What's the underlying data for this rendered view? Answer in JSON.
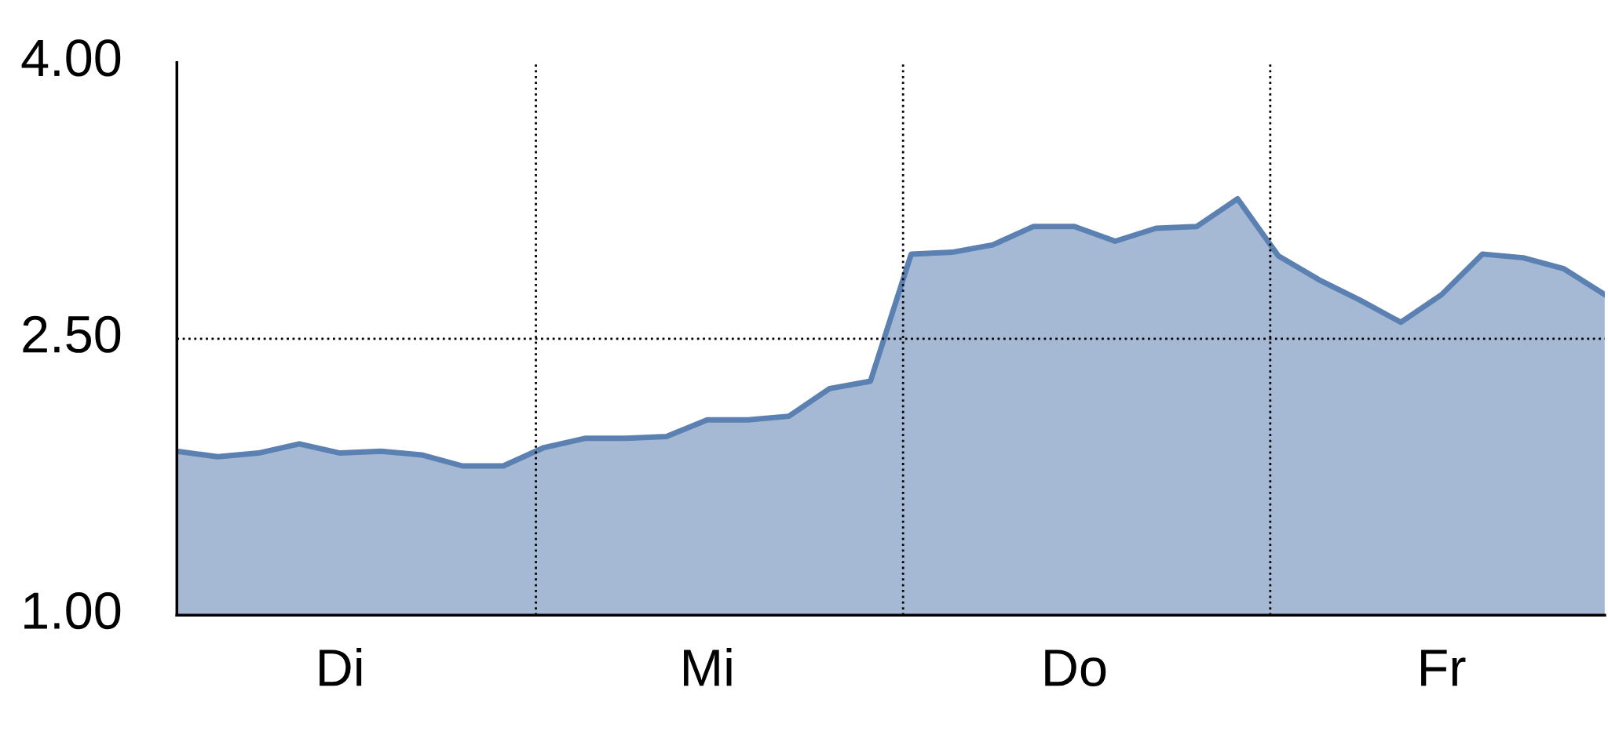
{
  "chart_data": {
    "type": "area",
    "categories": [
      null,
      null,
      null,
      null,
      "Di",
      null,
      null,
      null,
      null,
      null,
      null,
      null,
      null,
      "Mi",
      null,
      null,
      null,
      null,
      null,
      null,
      null,
      null,
      "Do",
      null,
      null,
      null,
      null,
      null,
      null,
      null,
      null,
      "Fr",
      null,
      null,
      null,
      null
    ],
    "series": [
      {
        "color": "#5b80b2",
        "values": [
          1.89,
          1.86,
          1.88,
          1.93,
          1.88,
          1.89,
          1.87,
          1.81,
          1.81,
          1.91,
          1.96,
          1.96,
          1.97,
          2.06,
          2.06,
          2.08,
          2.23,
          2.27,
          2.96,
          2.97,
          3.01,
          3.11,
          3.11,
          3.03,
          3.1,
          3.11,
          3.26,
          2.95,
          2.82,
          2.71,
          2.59,
          2.74,
          2.96,
          2.94,
          2.88,
          2.74
        ]
      }
    ],
    "ylim": [
      1,
      4
    ],
    "yticks": [
      {
        "value": 1,
        "label": "1.00"
      },
      {
        "value": 2.5,
        "label": "2.50"
      },
      {
        "value": 4,
        "label": "4.00"
      }
    ],
    "ref_lines": [
      {
        "axis": "y",
        "value": 2.5,
        "line_style": "dotted",
        "color": "#000000"
      }
    ],
    "grid": false,
    "legend": false
  }
}
